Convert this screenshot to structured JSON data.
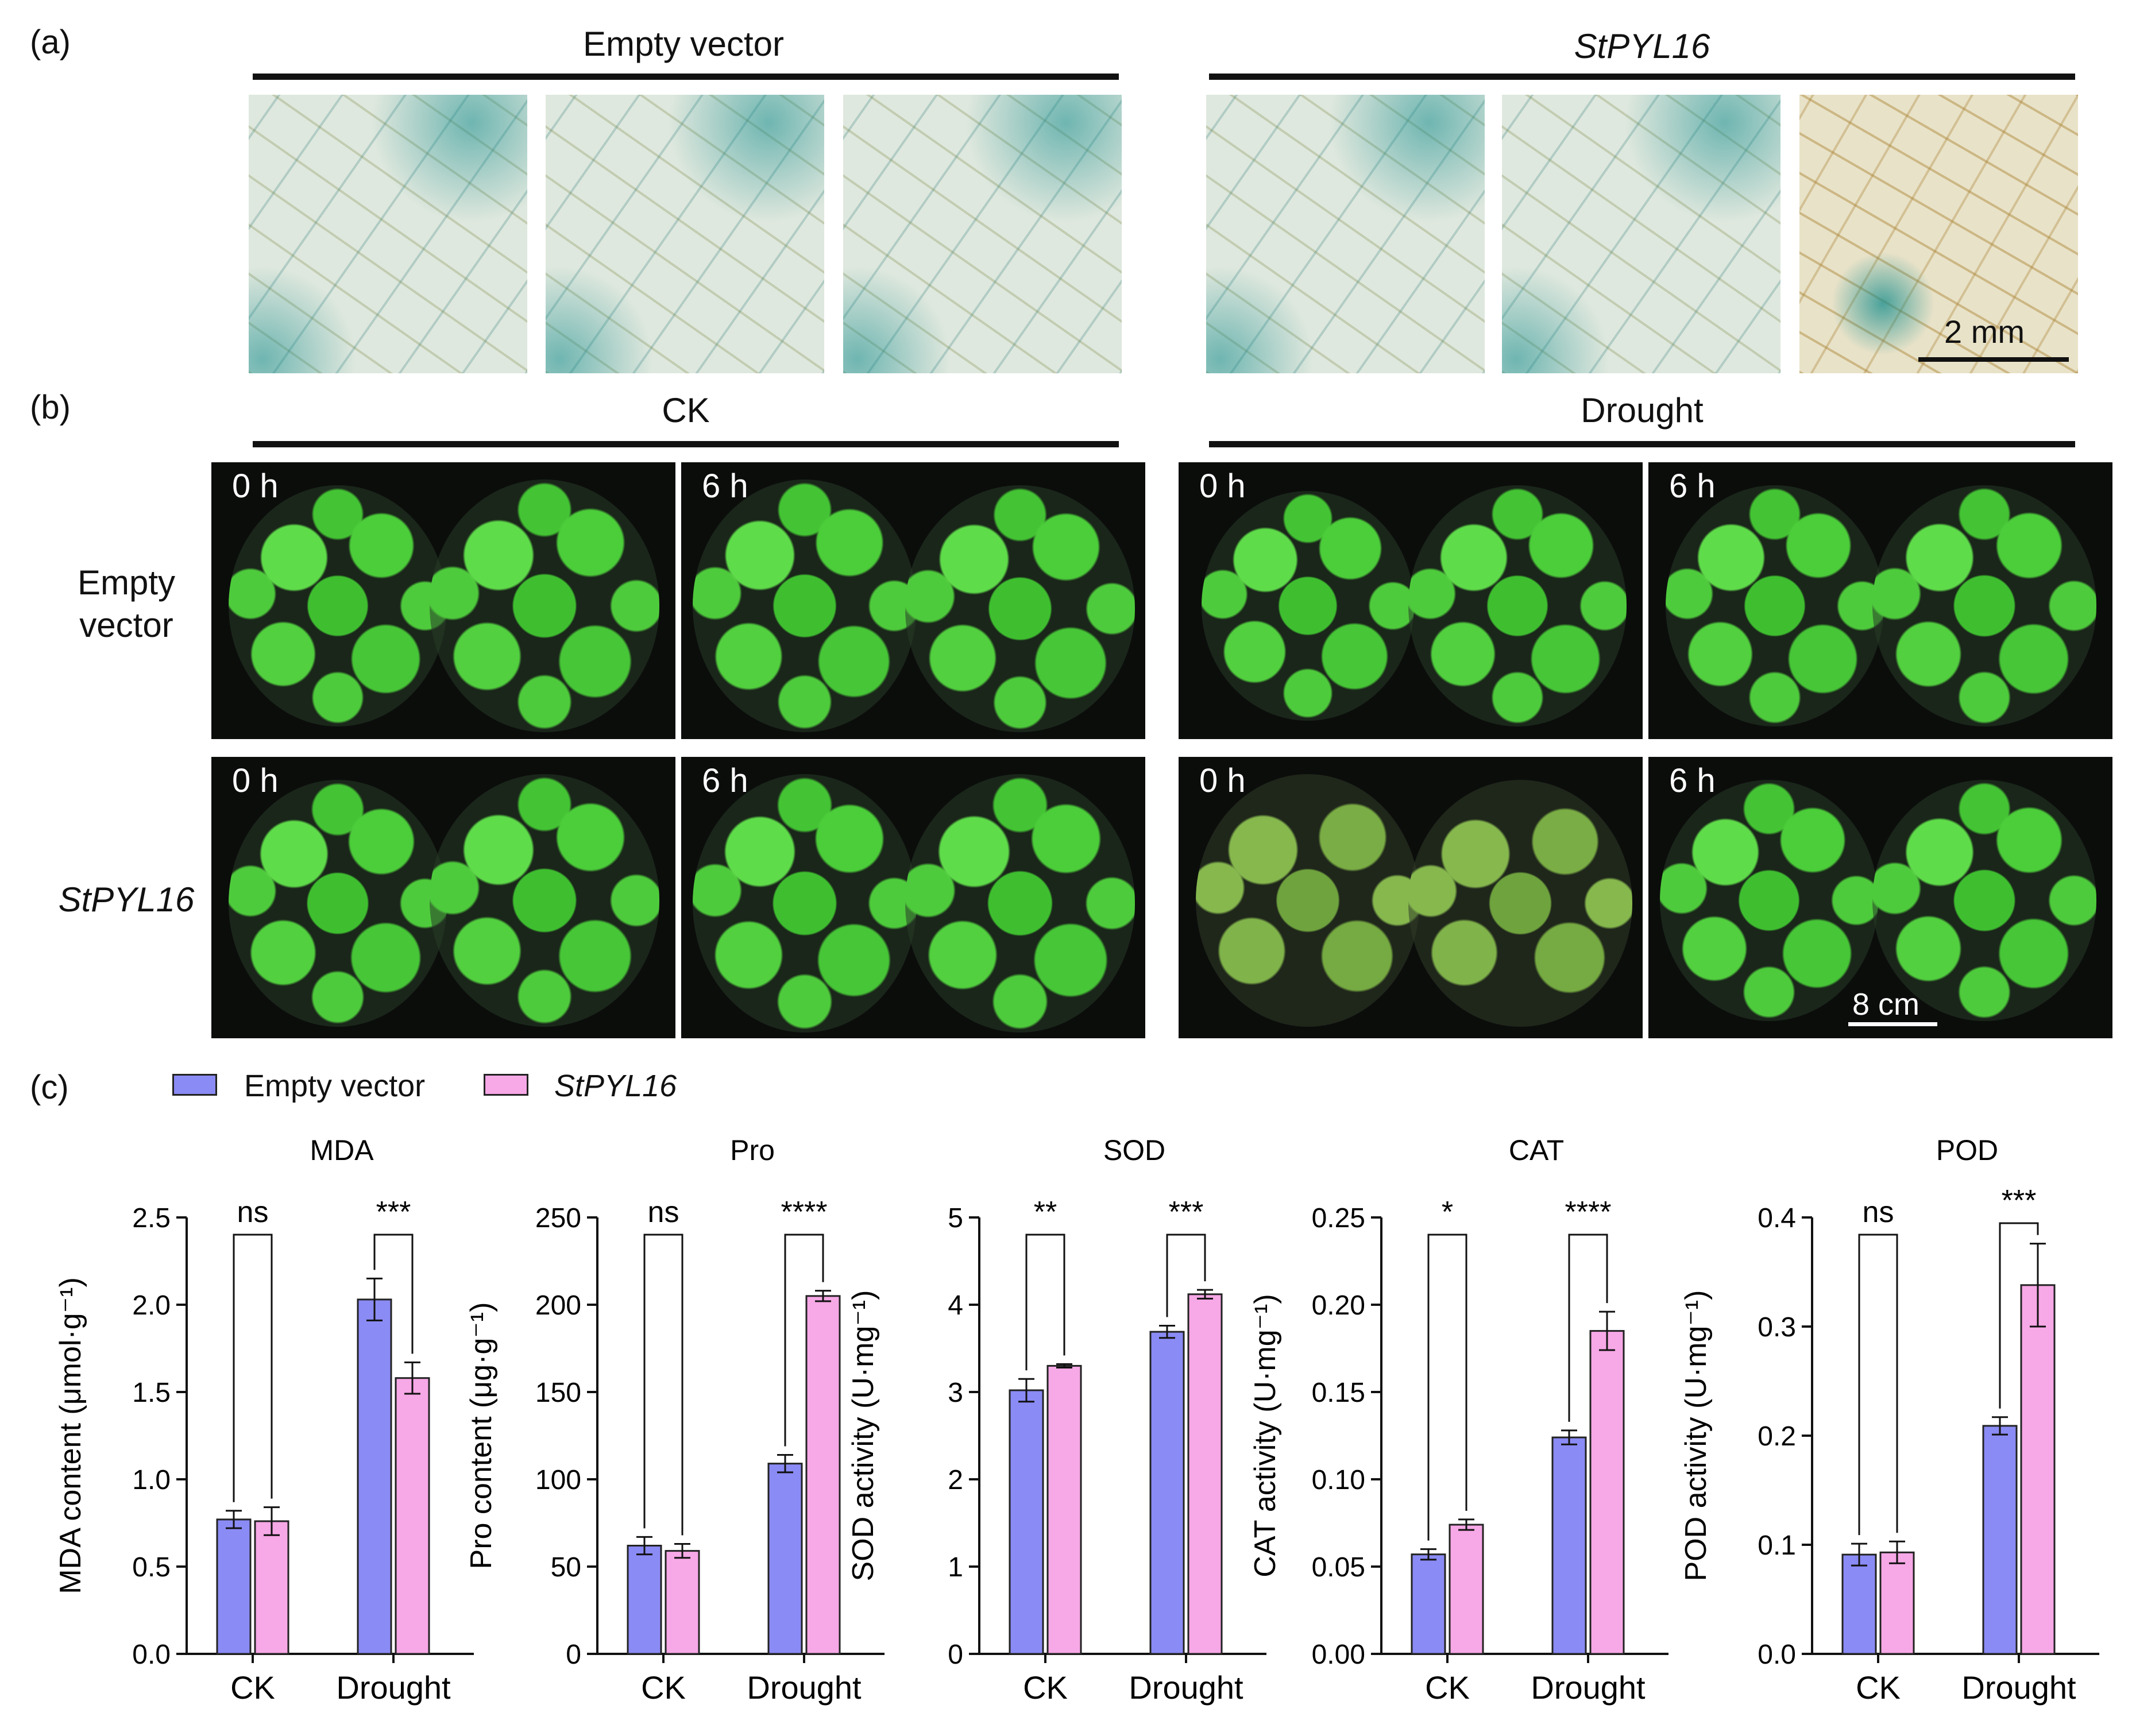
{
  "panels": {
    "a": "(a)",
    "b": "(b)",
    "c": "(c)"
  },
  "panel_a": {
    "group_left": "Empty vector",
    "group_right": "StPYL16",
    "scale_bar": "2 mm"
  },
  "panel_b": {
    "group_left": "CK",
    "group_right": "Drought",
    "row_labels": [
      "Empty\nvector",
      "StPYL16"
    ],
    "time_labels": [
      "0 h",
      "6 h",
      "0 h",
      "6 h",
      "0 h",
      "6 h",
      "0 h",
      "6 h"
    ],
    "scale_bar": "8 cm"
  },
  "legend": {
    "items": [
      {
        "label": "Empty vector",
        "color": "#8b8bf5"
      },
      {
        "label": "StPYL16",
        "color": "#f7a8e6"
      }
    ]
  },
  "chart_data": [
    {
      "type": "bar",
      "title": "MDA",
      "ylabel": "MDA content (μmol·g⁻¹)",
      "categories": [
        "CK",
        "Drought"
      ],
      "ylim": [
        0,
        2.5
      ],
      "yticks": [
        "0.0",
        "0.5",
        "1.0",
        "1.5",
        "2.0",
        "2.5"
      ],
      "series": [
        {
          "name": "Empty vector",
          "values": [
            0.77,
            2.03
          ],
          "errors": [
            0.05,
            0.12
          ]
        },
        {
          "name": "StPYL16",
          "values": [
            0.76,
            1.58
          ],
          "errors": [
            0.08,
            0.09
          ]
        }
      ],
      "significance": [
        "ns",
        "***"
      ]
    },
    {
      "type": "bar",
      "title": "Pro",
      "ylabel": "Pro content (μg·g⁻¹)",
      "categories": [
        "CK",
        "Drought"
      ],
      "ylim": [
        0,
        250
      ],
      "yticks": [
        "0",
        "50",
        "100",
        "150",
        "200",
        "250"
      ],
      "series": [
        {
          "name": "Empty vector",
          "values": [
            62,
            109
          ],
          "errors": [
            5,
            5
          ]
        },
        {
          "name": "StPYL16",
          "values": [
            59,
            205
          ],
          "errors": [
            4,
            3
          ]
        }
      ],
      "significance": [
        "ns",
        "****"
      ]
    },
    {
      "type": "bar",
      "title": "SOD",
      "ylabel": "SOD activity (U·mg⁻¹)",
      "categories": [
        "CK",
        "Drought"
      ],
      "ylim": [
        0,
        5
      ],
      "yticks": [
        "0",
        "1",
        "2",
        "3",
        "4",
        "5"
      ],
      "series": [
        {
          "name": "Empty vector",
          "values": [
            3.02,
            3.69
          ],
          "errors": [
            0.13,
            0.07
          ]
        },
        {
          "name": "StPYL16",
          "values": [
            3.3,
            4.12
          ],
          "errors": [
            0.02,
            0.05
          ]
        }
      ],
      "significance": [
        "**",
        "***"
      ]
    },
    {
      "type": "bar",
      "title": "CAT",
      "ylabel": "CAT activity (U·mg⁻¹)",
      "categories": [
        "CK",
        "Drought"
      ],
      "ylim": [
        0,
        0.25
      ],
      "yticks": [
        "0.00",
        "0.05",
        "0.10",
        "0.15",
        "0.20",
        "0.25"
      ],
      "series": [
        {
          "name": "Empty vector",
          "values": [
            0.057,
            0.124
          ],
          "errors": [
            0.003,
            0.004
          ]
        },
        {
          "name": "StPYL16",
          "values": [
            0.074,
            0.185
          ],
          "errors": [
            0.003,
            0.011
          ]
        }
      ],
      "significance": [
        "*",
        "****"
      ]
    },
    {
      "type": "bar",
      "title": "POD",
      "ylabel": "POD activity (U·mg⁻¹)",
      "categories": [
        "CK",
        "Drought"
      ],
      "ylim": [
        0,
        0.4
      ],
      "yticks": [
        "0.0",
        "0.1",
        "0.2",
        "0.3",
        "0.4"
      ],
      "series": [
        {
          "name": "Empty vector",
          "values": [
            0.091,
            0.209
          ],
          "errors": [
            0.01,
            0.008
          ]
        },
        {
          "name": "StPYL16",
          "values": [
            0.093,
            0.338
          ],
          "errors": [
            0.01,
            0.038
          ]
        }
      ],
      "significance": [
        "ns",
        "***"
      ]
    }
  ]
}
